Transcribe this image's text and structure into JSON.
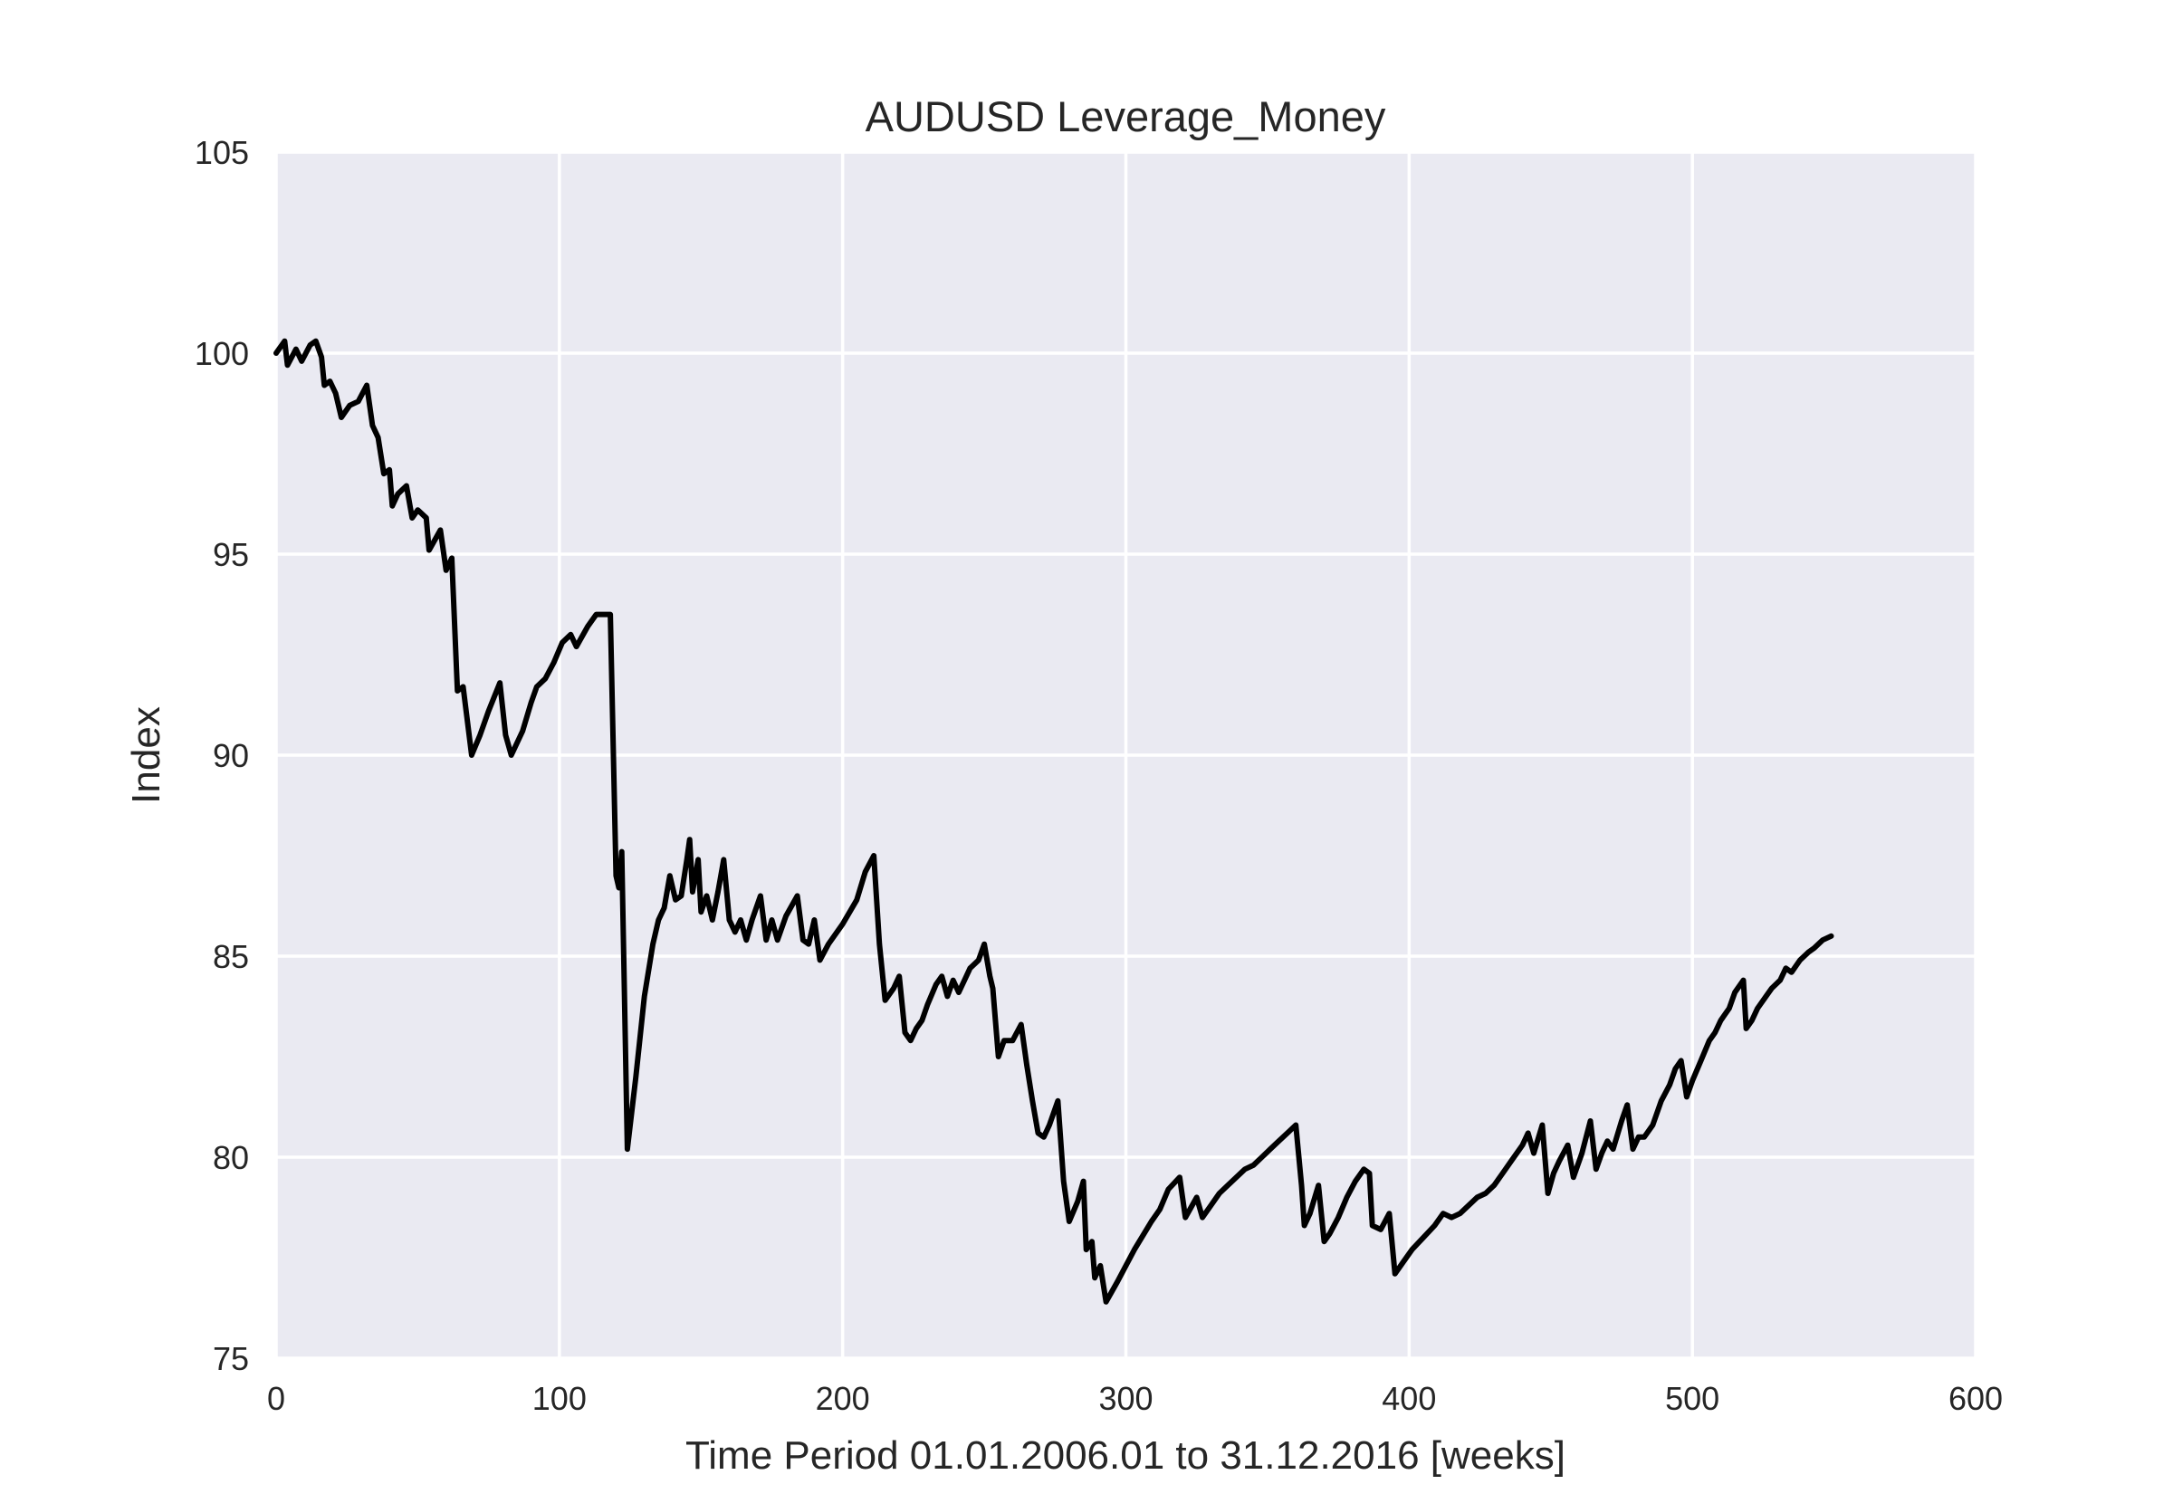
{
  "chart_data": {
    "type": "line",
    "title": "AUDUSD Leverage_Money",
    "xlabel": "Time Period 01.01.2006.01 to 31.12.2016 [weeks]",
    "ylabel": "Index",
    "xlim": [
      0,
      600
    ],
    "ylim": [
      75,
      105
    ],
    "xticks": [
      0,
      100,
      200,
      300,
      400,
      500,
      600
    ],
    "yticks": [
      75,
      80,
      85,
      90,
      95,
      100,
      105
    ],
    "grid": true,
    "colors": {
      "background": "#EAEAF2",
      "grid": "#FFFFFF",
      "line": "#000000"
    },
    "series": [
      {
        "points": [
          [
            0,
            100.0
          ],
          [
            3,
            100.3
          ],
          [
            4,
            99.7
          ],
          [
            7,
            100.1
          ],
          [
            9,
            99.8
          ],
          [
            12,
            100.2
          ],
          [
            14,
            100.3
          ],
          [
            16,
            99.9
          ],
          [
            17,
            99.2
          ],
          [
            19,
            99.3
          ],
          [
            21,
            99.0
          ],
          [
            23,
            98.4
          ],
          [
            26,
            98.7
          ],
          [
            29,
            98.8
          ],
          [
            32,
            99.2
          ],
          [
            34,
            98.2
          ],
          [
            36,
            97.9
          ],
          [
            38,
            97.0
          ],
          [
            40,
            97.1
          ],
          [
            41,
            96.2
          ],
          [
            43,
            96.5
          ],
          [
            46,
            96.7
          ],
          [
            48,
            95.9
          ],
          [
            50,
            96.1
          ],
          [
            53,
            95.9
          ],
          [
            54,
            95.1
          ],
          [
            58,
            95.6
          ],
          [
            60,
            94.6
          ],
          [
            62,
            94.9
          ],
          [
            64,
            91.6
          ],
          [
            66,
            91.7
          ],
          [
            69,
            90.0
          ],
          [
            72,
            90.5
          ],
          [
            75,
            91.1
          ],
          [
            79,
            91.8
          ],
          [
            81,
            90.5
          ],
          [
            83,
            90.0
          ],
          [
            87,
            90.6
          ],
          [
            90,
            91.3
          ],
          [
            92,
            91.7
          ],
          [
            95,
            91.9
          ],
          [
            98,
            92.3
          ],
          [
            101,
            92.8
          ],
          [
            104,
            93.0
          ],
          [
            106,
            92.7
          ],
          [
            110,
            93.2
          ],
          [
            113,
            93.5
          ],
          [
            118,
            93.5
          ],
          [
            120,
            87.0
          ],
          [
            121,
            86.7
          ],
          [
            122,
            87.6
          ],
          [
            124,
            80.2
          ],
          [
            127,
            82.0
          ],
          [
            130,
            84.0
          ],
          [
            133,
            85.3
          ],
          [
            135,
            85.9
          ],
          [
            137,
            86.2
          ],
          [
            139,
            87.0
          ],
          [
            141,
            86.4
          ],
          [
            143,
            86.5
          ],
          [
            145,
            87.4
          ],
          [
            146,
            87.9
          ],
          [
            147,
            86.6
          ],
          [
            149,
            87.4
          ],
          [
            150,
            86.1
          ],
          [
            152,
            86.5
          ],
          [
            154,
            85.9
          ],
          [
            156,
            86.6
          ],
          [
            158,
            87.4
          ],
          [
            160,
            85.9
          ],
          [
            162,
            85.6
          ],
          [
            164,
            85.9
          ],
          [
            166,
            85.4
          ],
          [
            168,
            85.9
          ],
          [
            171,
            86.5
          ],
          [
            173,
            85.4
          ],
          [
            175,
            85.9
          ],
          [
            177,
            85.4
          ],
          [
            180,
            86.0
          ],
          [
            184,
            86.5
          ],
          [
            186,
            85.4
          ],
          [
            188,
            85.3
          ],
          [
            190,
            85.9
          ],
          [
            192,
            84.9
          ],
          [
            195,
            85.3
          ],
          [
            200,
            85.8
          ],
          [
            205,
            86.4
          ],
          [
            208,
            87.1
          ],
          [
            211,
            87.5
          ],
          [
            213,
            85.3
          ],
          [
            215,
            83.9
          ],
          [
            218,
            84.2
          ],
          [
            220,
            84.5
          ],
          [
            222,
            83.1
          ],
          [
            224,
            82.9
          ],
          [
            226,
            83.2
          ],
          [
            228,
            83.4
          ],
          [
            230,
            83.8
          ],
          [
            233,
            84.3
          ],
          [
            235,
            84.5
          ],
          [
            237,
            84.0
          ],
          [
            239,
            84.4
          ],
          [
            241,
            84.1
          ],
          [
            243,
            84.4
          ],
          [
            245,
            84.7
          ],
          [
            248,
            84.9
          ],
          [
            250,
            85.3
          ],
          [
            252,
            84.5
          ],
          [
            253,
            84.2
          ],
          [
            255,
            82.5
          ],
          [
            257,
            82.9
          ],
          [
            260,
            82.9
          ],
          [
            263,
            83.3
          ],
          [
            265,
            82.3
          ],
          [
            267,
            81.4
          ],
          [
            269,
            80.6
          ],
          [
            271,
            80.5
          ],
          [
            273,
            80.8
          ],
          [
            276,
            81.4
          ],
          [
            278,
            79.4
          ],
          [
            280,
            78.4
          ],
          [
            283,
            78.9
          ],
          [
            285,
            79.4
          ],
          [
            286,
            77.7
          ],
          [
            288,
            77.9
          ],
          [
            289,
            77.0
          ],
          [
            291,
            77.3
          ],
          [
            293,
            76.4
          ],
          [
            297,
            76.9
          ],
          [
            303,
            77.7
          ],
          [
            309,
            78.4
          ],
          [
            312,
            78.7
          ],
          [
            315,
            79.2
          ],
          [
            319,
            79.5
          ],
          [
            321,
            78.5
          ],
          [
            325,
            79.0
          ],
          [
            327,
            78.5
          ],
          [
            330,
            78.8
          ],
          [
            333,
            79.1
          ],
          [
            336,
            79.3
          ],
          [
            339,
            79.5
          ],
          [
            342,
            79.7
          ],
          [
            345,
            79.8
          ],
          [
            348,
            80.0
          ],
          [
            351,
            80.2
          ],
          [
            354,
            80.4
          ],
          [
            357,
            80.6
          ],
          [
            360,
            80.8
          ],
          [
            362,
            79.3
          ],
          [
            363,
            78.3
          ],
          [
            365,
            78.6
          ],
          [
            368,
            79.3
          ],
          [
            370,
            77.9
          ],
          [
            372,
            78.1
          ],
          [
            375,
            78.5
          ],
          [
            378,
            79.0
          ],
          [
            381,
            79.4
          ],
          [
            384,
            79.7
          ],
          [
            386,
            79.6
          ],
          [
            387,
            78.3
          ],
          [
            390,
            78.2
          ],
          [
            393,
            78.6
          ],
          [
            395,
            77.1
          ],
          [
            398,
            77.4
          ],
          [
            401,
            77.7
          ],
          [
            405,
            78.0
          ],
          [
            409,
            78.3
          ],
          [
            412,
            78.6
          ],
          [
            415,
            78.5
          ],
          [
            418,
            78.6
          ],
          [
            421,
            78.8
          ],
          [
            424,
            79.0
          ],
          [
            427,
            79.1
          ],
          [
            430,
            79.3
          ],
          [
            433,
            79.6
          ],
          [
            436,
            79.9
          ],
          [
            440,
            80.3
          ],
          [
            442,
            80.6
          ],
          [
            444,
            80.1
          ],
          [
            447,
            80.8
          ],
          [
            449,
            79.1
          ],
          [
            451,
            79.6
          ],
          [
            453,
            79.9
          ],
          [
            456,
            80.3
          ],
          [
            458,
            79.5
          ],
          [
            461,
            80.1
          ],
          [
            464,
            80.9
          ],
          [
            466,
            79.7
          ],
          [
            468,
            80.1
          ],
          [
            470,
            80.4
          ],
          [
            472,
            80.2
          ],
          [
            475,
            80.9
          ],
          [
            477,
            81.3
          ],
          [
            479,
            80.2
          ],
          [
            481,
            80.5
          ],
          [
            483,
            80.5
          ],
          [
            486,
            80.8
          ],
          [
            489,
            81.4
          ],
          [
            492,
            81.8
          ],
          [
            494,
            82.2
          ],
          [
            496,
            82.4
          ],
          [
            498,
            81.5
          ],
          [
            500,
            81.9
          ],
          [
            503,
            82.4
          ],
          [
            506,
            82.9
          ],
          [
            508,
            83.1
          ],
          [
            510,
            83.4
          ],
          [
            513,
            83.7
          ],
          [
            515,
            84.1
          ],
          [
            518,
            84.4
          ],
          [
            519,
            83.2
          ],
          [
            521,
            83.4
          ],
          [
            523,
            83.7
          ],
          [
            526,
            84.0
          ],
          [
            528,
            84.2
          ],
          [
            531,
            84.4
          ],
          [
            533,
            84.7
          ],
          [
            535,
            84.6
          ],
          [
            538,
            84.9
          ],
          [
            541,
            85.1
          ],
          [
            543,
            85.2
          ],
          [
            546,
            85.4
          ],
          [
            549,
            85.5
          ]
        ]
      }
    ]
  }
}
